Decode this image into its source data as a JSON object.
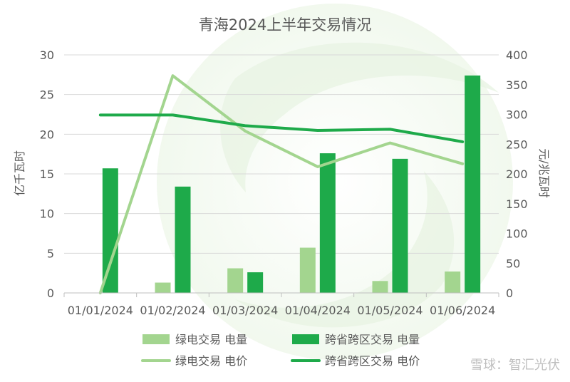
{
  "chart_data": {
    "type": "bar",
    "title": "青海2024上半年交易情况",
    "categories": [
      "01/01/2024",
      "01/02/2024",
      "01/03/2024",
      "01/04/2024",
      "01/05/2024",
      "01/06/2024"
    ],
    "ylabel": "亿千瓦时",
    "y2label": "元/兆瓦时",
    "ylim": [
      0,
      30
    ],
    "yticks": [
      0,
      5,
      10,
      15,
      20,
      25,
      30
    ],
    "y2lim": [
      0,
      400
    ],
    "y2ticks": [
      0,
      50,
      100,
      150,
      200,
      250,
      300,
      350,
      400
    ],
    "grid": true,
    "legend_position": "bottom",
    "series": [
      {
        "name": "绿电交易 电量",
        "kind": "bar",
        "axis": "left",
        "color": "#a3d58f",
        "values": [
          0,
          1.3,
          3.1,
          5.7,
          1.5,
          2.7
        ]
      },
      {
        "name": "跨省跨区交易 电量",
        "kind": "bar",
        "axis": "left",
        "color": "#1eaa4a",
        "values": [
          15.7,
          13.4,
          2.6,
          17.6,
          16.9,
          27.4
        ]
      },
      {
        "name": "绿电交易 电价",
        "kind": "line",
        "axis": "right",
        "color": "#a3d58f",
        "values": [
          0,
          365,
          272,
          212,
          252,
          217
        ]
      },
      {
        "name": "跨省跨区交易 电价",
        "kind": "line",
        "axis": "right",
        "color": "#1eaa4a",
        "values": [
          299,
          299,
          281,
          273,
          275,
          254
        ]
      }
    ]
  },
  "watermark": "雪球：智汇光伏"
}
